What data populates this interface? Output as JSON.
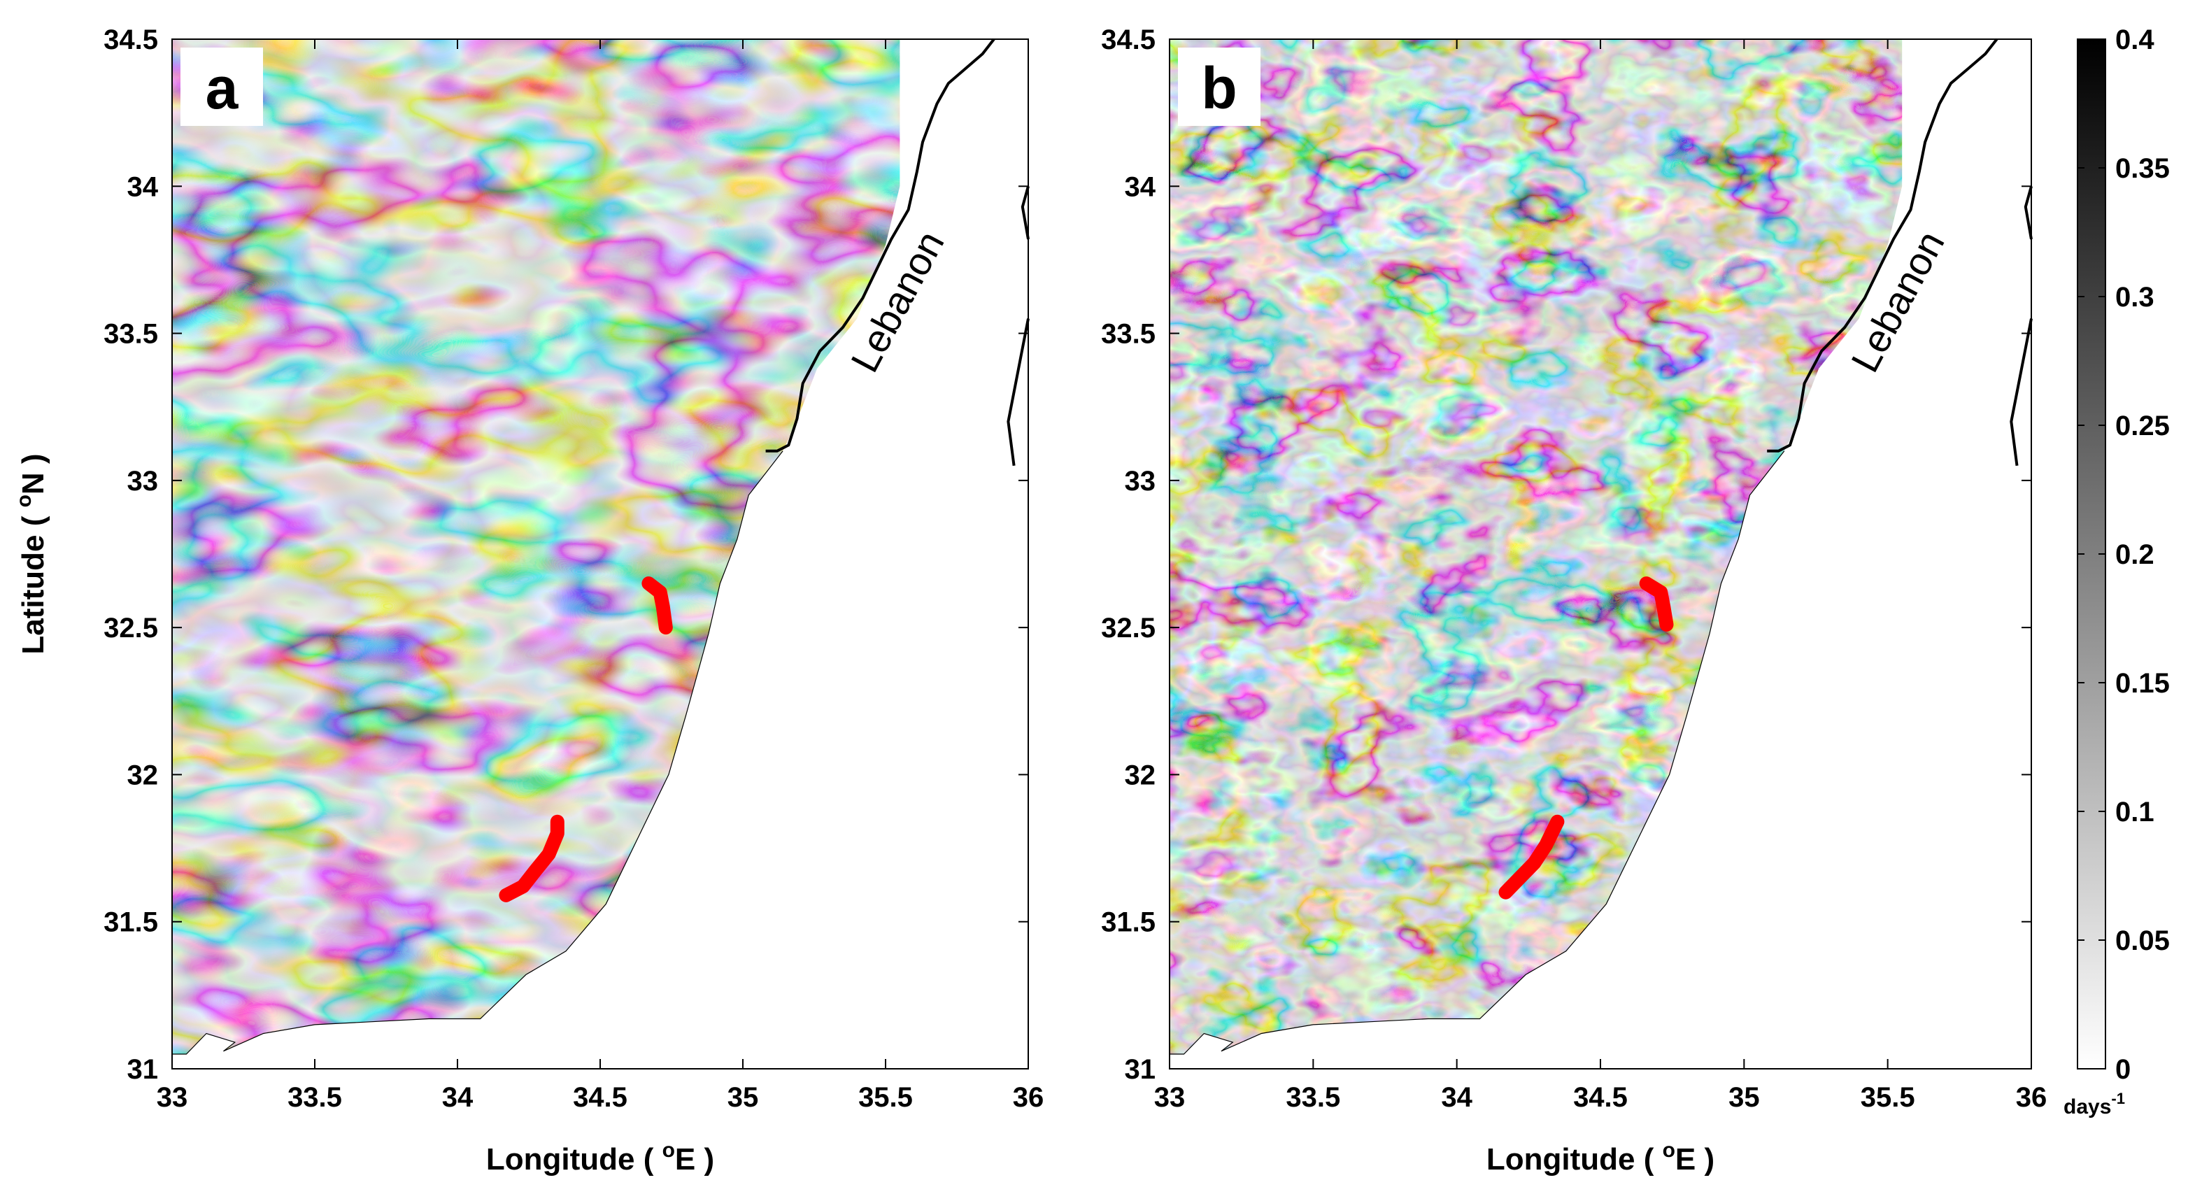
{
  "figure": {
    "colorbar": {
      "min": 0,
      "max": 0.4,
      "ticks": [
        "0",
        "0.05",
        "0.1",
        "0.15",
        "0.2",
        "0.25",
        "0.3",
        "0.35",
        "0.4"
      ],
      "unit_base": "days",
      "unit_exp": "-1"
    },
    "colors": {
      "low": "#ffffff",
      "high": "#000000",
      "marker": "#ff0000",
      "coast": "#000000"
    }
  },
  "chart_data": [
    {
      "type": "heatmap",
      "panel_label": "a",
      "xlabel_main": "Longitude ( ",
      "xlabel_sup": "o",
      "xlabel_end": "E )",
      "ylabel_main": "Latitude ( ",
      "ylabel_sup": "o",
      "ylabel_end": "N )",
      "xlim": [
        33,
        36
      ],
      "ylim": [
        31,
        34.5
      ],
      "xticks": [
        "33",
        "33.5",
        "34",
        "34.5",
        "35",
        "35.5",
        "36"
      ],
      "yticks": [
        "31",
        "31.5",
        "32",
        "32.5",
        "33",
        "33.5",
        "34",
        "34.5"
      ],
      "grid": false,
      "annotation": "Lebanon",
      "red_tracks": [
        [
          [
            34.67,
            32.65
          ],
          [
            34.71,
            32.62
          ],
          [
            34.72,
            32.57
          ],
          [
            34.73,
            32.5
          ]
        ],
        [
          [
            34.17,
            31.59
          ],
          [
            34.23,
            31.62
          ],
          [
            34.27,
            31.67
          ],
          [
            34.32,
            31.73
          ],
          [
            34.35,
            31.8
          ],
          [
            34.35,
            31.84
          ]
        ]
      ]
    },
    {
      "type": "heatmap",
      "panel_label": "b",
      "xlabel_main": "Longitude ( ",
      "xlabel_sup": "o",
      "xlabel_end": "E )",
      "ylabel_main": "",
      "xlim": [
        33,
        36
      ],
      "ylim": [
        31,
        34.5
      ],
      "xticks": [
        "33",
        "33.5",
        "34",
        "34.5",
        "35",
        "35.5",
        "36"
      ],
      "yticks": [
        "31",
        "31.5",
        "32",
        "32.5",
        "33",
        "33.5",
        "34",
        "34.5"
      ],
      "grid": false,
      "annotation": "Lebanon",
      "red_tracks": [
        [
          [
            34.66,
            32.65
          ],
          [
            34.71,
            32.62
          ],
          [
            34.72,
            32.57
          ],
          [
            34.73,
            32.51
          ]
        ],
        [
          [
            34.17,
            31.6
          ],
          [
            34.22,
            31.65
          ],
          [
            34.27,
            31.7
          ],
          [
            34.31,
            31.76
          ],
          [
            34.33,
            31.8
          ],
          [
            34.35,
            31.84
          ]
        ]
      ]
    }
  ]
}
